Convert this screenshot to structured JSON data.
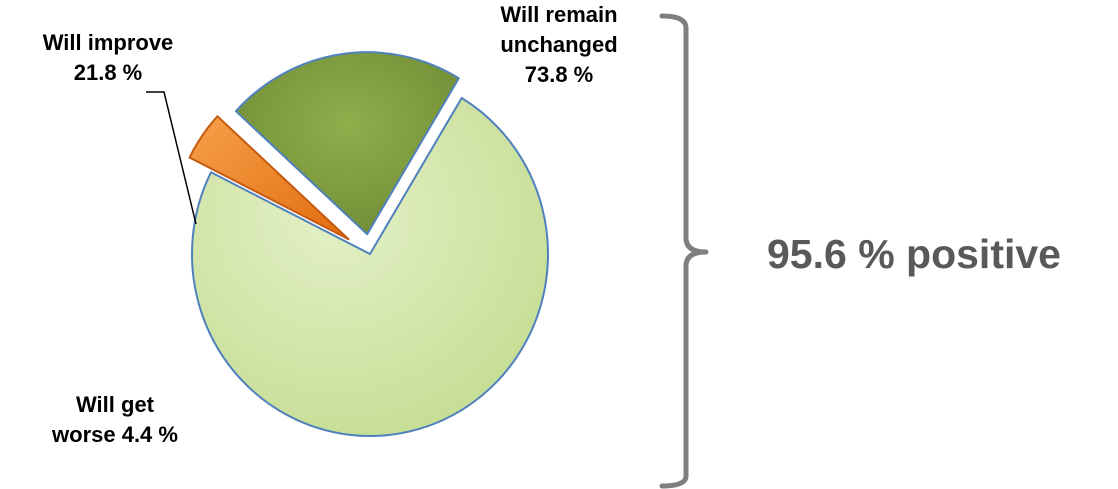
{
  "chart_data": {
    "type": "pie",
    "title": "",
    "slices": [
      {
        "label_lines": [
          "Will remain",
          "unchanged",
          "73.8 %"
        ],
        "value": 73.8,
        "color": "#cfe4a6"
      },
      {
        "label_lines": [
          "Will get",
          "worse 4.4 %"
        ],
        "value": 4.4,
        "color": "#f08226"
      },
      {
        "label_lines": [
          "Will improve",
          "21.8 %"
        ],
        "value": 21.8,
        "color": "#7f9c3f"
      }
    ],
    "summary": "95.6 % positive",
    "legend": "none",
    "bracket_color": "#7f7f7f"
  }
}
